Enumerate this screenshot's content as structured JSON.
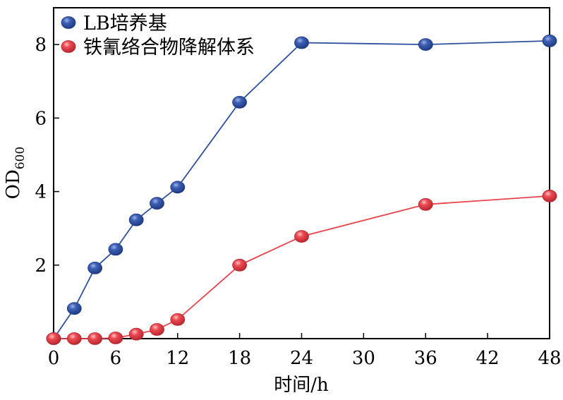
{
  "chart_data": {
    "type": "line",
    "xlabel": "时间/h",
    "ylabel_main": "OD",
    "ylabel_sub": "600",
    "xlim": [
      0,
      48
    ],
    "ylim": [
      0,
      9
    ],
    "xticks": [
      0,
      6,
      12,
      18,
      24,
      30,
      36,
      42,
      48
    ],
    "yticks": [
      2,
      4,
      6,
      8
    ],
    "grid": false,
    "legend_position": "top-left",
    "series": [
      {
        "name": "LB培养基",
        "color": "#2e4f9e",
        "x": [
          0,
          2,
          4,
          6,
          8,
          10,
          12,
          18,
          24,
          36,
          48
        ],
        "y": [
          0.0,
          0.82,
          1.92,
          2.43,
          3.23,
          3.68,
          4.12,
          6.43,
          8.05,
          8.0,
          8.1
        ]
      },
      {
        "name": "铁氰络合物降解体系",
        "color": "#e8424a",
        "x": [
          0,
          2,
          4,
          6,
          8,
          10,
          12,
          18,
          24,
          36,
          48
        ],
        "y": [
          0.0,
          0.0,
          0.0,
          0.02,
          0.12,
          0.25,
          0.52,
          2.0,
          2.78,
          3.65,
          3.88
        ]
      }
    ]
  }
}
